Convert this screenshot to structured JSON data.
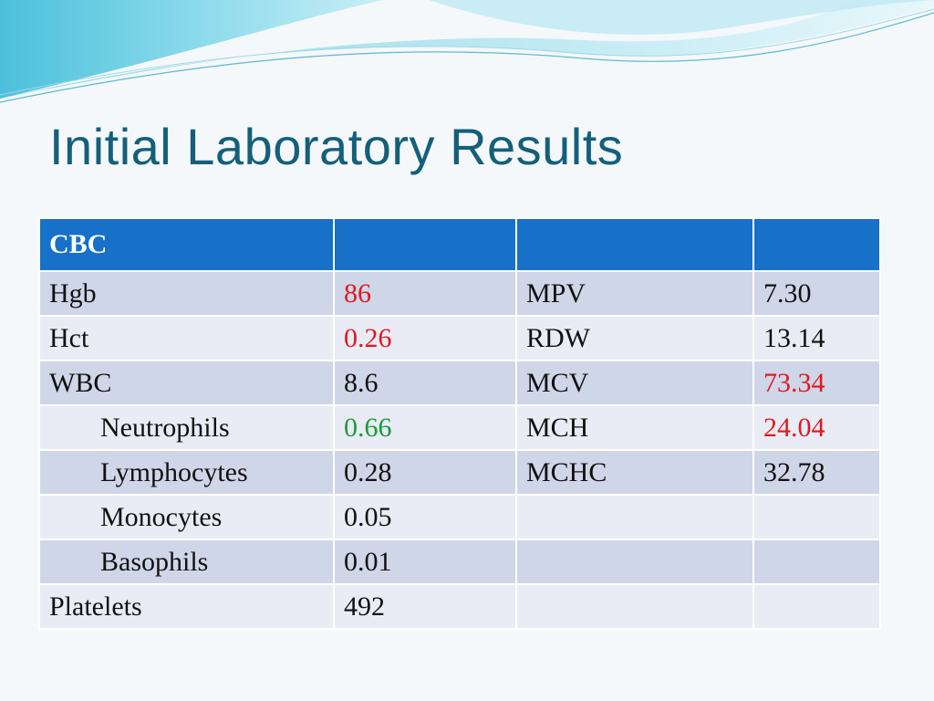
{
  "slide": {
    "title": "Initial Laboratory Results"
  },
  "table": {
    "header": [
      "CBC",
      "",
      "",
      ""
    ],
    "rows": [
      {
        "name": "Hgb",
        "value": "86",
        "name2": "MPV",
        "value2": "7.30"
      },
      {
        "name": "Hct",
        "value": "0.26",
        "name2": "RDW",
        "value2": "13.14"
      },
      {
        "name": "WBC",
        "value": "8.6",
        "name2": "MCV",
        "value2": "73.34"
      },
      {
        "name": "Neutrophils",
        "value": "0.66",
        "name2": "MCH",
        "value2": "24.04"
      },
      {
        "name": "Lymphocytes",
        "value": "0.28",
        "name2": "MCHC",
        "value2": "32.78"
      },
      {
        "name": "Monocytes",
        "value": "0.05",
        "name2": "",
        "value2": ""
      },
      {
        "name": "Basophils",
        "value": "0.01",
        "name2": "",
        "value2": ""
      },
      {
        "name": "Platelets",
        "value": "492",
        "name2": "",
        "value2": ""
      }
    ]
  },
  "colors": {
    "title": "#155f7a",
    "header_bg": "#1871c8",
    "row_dark": "#cfd6e8",
    "row_light": "#e9ecf4",
    "abnormal": "#e0191f",
    "normal_highlight": "#1a9a3c"
  }
}
